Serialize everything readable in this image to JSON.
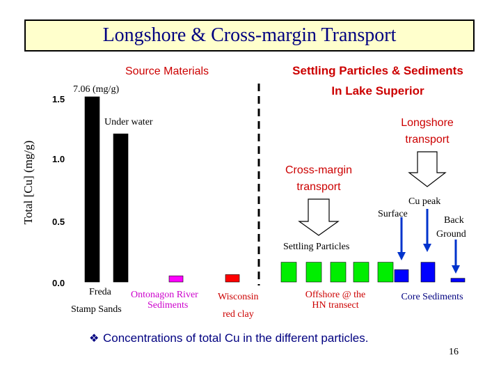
{
  "slide": {
    "title": "Longshore & Cross-margin Transport",
    "footnote_bullet": "❖",
    "footnote": "Concentrations of total Cu in the different particles.",
    "page_number": "16"
  },
  "labels": {
    "source_materials": "Source Materials",
    "settling_header_line1": "Settling Particles & Sediments",
    "settling_header_line2": "In Lake Superior",
    "value_annotation": "7.06 (mg/g)",
    "under_water": "Under water",
    "longshore_line1": "Longshore",
    "longshore_line2": "transport",
    "cross_margin_line1": "Cross-margin",
    "cross_margin_line2": "transport",
    "cu_peak": "Cu peak",
    "surface": "Surface",
    "back_ground_line1": "Back",
    "back_ground_line2": "Ground",
    "settling_particles": "Settling Particles"
  },
  "chart_data": {
    "type": "bar",
    "ylabel": "Total [Cu] (mg/g)",
    "ylim": [
      0,
      1.5
    ],
    "yticks": [
      "0.0",
      "0.5",
      "1.0",
      "1.5"
    ],
    "groups": [
      {
        "name": "Freda Stamp Sands",
        "label_line1": "Freda",
        "label_line2": "Stamp Sands",
        "values": [
          1.5,
          1.2
        ],
        "color": "#000000",
        "note": "first bar truncated at 7.06 (mg/g)"
      },
      {
        "name": "Ontonagon River Sediments",
        "label_line1": "Ontonagon River",
        "label_line2": "Sediments",
        "values": [
          0.05
        ],
        "color": "#ff00ff"
      },
      {
        "name": "Wisconsin red clay",
        "label_line1": "Wisconsin",
        "label_line2": "red clay",
        "values": [
          0.06
        ],
        "color": "#ff0000"
      },
      {
        "name": "Offshore @ the HN transect",
        "label_line1": "Offshore @ the",
        "label_line2": "HN transect",
        "values": [
          0.16,
          0.16,
          0.16,
          0.16,
          0.16
        ],
        "color": "#00ee00"
      },
      {
        "name": "Core Sediments",
        "label_line1": "Core Sediments",
        "label_line2": "",
        "values": [
          0.1,
          0.16,
          0.03
        ],
        "color": "#0000ff"
      }
    ]
  },
  "colors": {
    "title_text": "#000080",
    "title_bg": "#ffffcc",
    "header_text": "#cc0000",
    "group_label_text": "#cc0000",
    "ontonagon_label": "#cc00cc",
    "core_label": "#000080",
    "blue_arrow": "#0033cc"
  }
}
